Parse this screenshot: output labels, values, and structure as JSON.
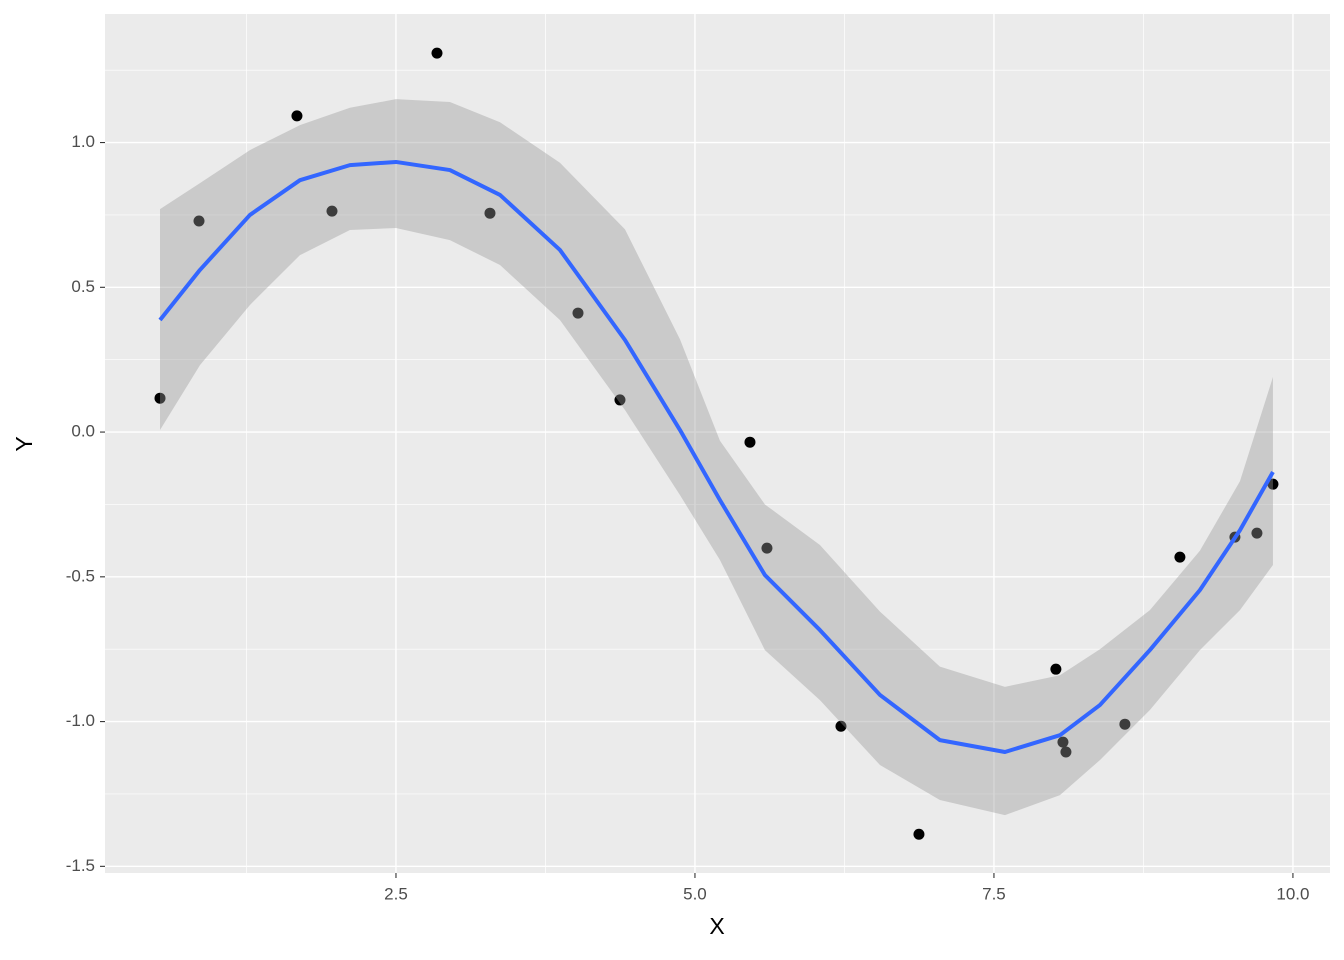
{
  "chart_data": {
    "type": "scatter",
    "x_label": "X",
    "y_label": "Y",
    "xlim": [
      0.067,
      10.31
    ],
    "ylim": [
      -1.523,
      1.444
    ],
    "xticks": [
      {
        "value": 2.5,
        "label": "2.5"
      },
      {
        "value": 5,
        "label": "5.0"
      },
      {
        "value": 7.5,
        "label": "7.5"
      },
      {
        "value": 10,
        "label": "10.0"
      }
    ],
    "yticks": [
      {
        "value": -1.5,
        "label": "-1.5"
      },
      {
        "value": -1,
        "label": "-1.0"
      },
      -0.5,
      {
        "value": 0,
        "label": "0.0"
      },
      0.5,
      {
        "value": 1,
        "label": "1.0"
      }
    ],
    "grid": true,
    "points": {
      "color": "#000000",
      "x": [
        0.527,
        0.853,
        1.672,
        1.965,
        2.843,
        3.286,
        4.022,
        4.373,
        5.46,
        5.602,
        6.221,
        6.873,
        8.018,
        8.077,
        8.102,
        8.595,
        9.055,
        9.515,
        9.699,
        9.833
      ],
      "values": [
        0.117,
        0.729,
        1.092,
        0.763,
        1.309,
        0.756,
        0.411,
        0.111,
        -0.035,
        -0.401,
        -1.016,
        -1.389,
        -0.819,
        -1.071,
        -1.105,
        -1.009,
        -0.432,
        -0.363,
        -0.349,
        -0.18
      ]
    },
    "smooth": {
      "color": "#3366FF",
      "band_color": "#999999",
      "x": [
        0.527,
        0.861,
        1.279,
        1.697,
        2.115,
        2.5,
        2.951,
        3.37,
        3.871,
        4.415,
        4.875,
        5.209,
        5.585,
        6.045,
        6.547,
        7.048,
        7.592,
        8.052,
        8.386,
        8.804,
        9.222,
        9.557,
        9.833
      ],
      "values": [
        0.387,
        0.56,
        0.75,
        0.87,
        0.922,
        0.933,
        0.905,
        0.819,
        0.629,
        0.318,
        0.007,
        -0.235,
        -0.494,
        -0.684,
        -0.908,
        -1.064,
        -1.105,
        -1.047,
        -0.943,
        -0.753,
        -0.546,
        -0.339,
        -0.138
      ],
      "upper": [
        0.77,
        0.86,
        0.974,
        1.06,
        1.12,
        1.15,
        1.14,
        1.07,
        0.93,
        0.7,
        0.32,
        -0.03,
        -0.25,
        -0.39,
        -0.62,
        -0.81,
        -0.88,
        -0.84,
        -0.75,
        -0.615,
        -0.41,
        -0.17,
        0.19
      ],
      "lower": [
        0.007,
        0.231,
        0.439,
        0.611,
        0.698,
        0.705,
        0.663,
        0.577,
        0.387,
        0.076,
        -0.218,
        -0.442,
        -0.753,
        -0.926,
        -1.15,
        -1.271,
        -1.323,
        -1.254,
        -1.133,
        -0.96,
        -0.753,
        -0.615,
        -0.459
      ]
    }
  }
}
